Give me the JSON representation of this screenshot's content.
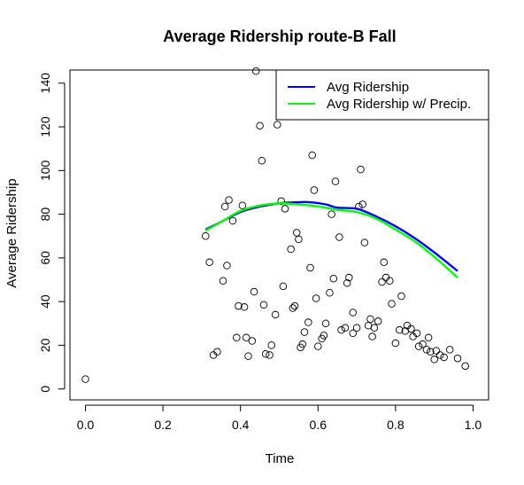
{
  "chart_data": {
    "type": "scatter",
    "title": "Average Ridership route-B Fall",
    "xlabel": "Time",
    "ylabel": "Average Ridership",
    "xlim": [
      -0.04,
      1.04
    ],
    "ylim": [
      -5,
      146
    ],
    "x_ticks": [
      0.0,
      0.2,
      0.4,
      0.6,
      0.8,
      1.0
    ],
    "x_tick_labels": [
      "0.0",
      "0.2",
      "0.4",
      "0.6",
      "0.8",
      "1.0"
    ],
    "y_ticks": [
      0,
      20,
      40,
      60,
      80,
      100,
      120,
      140
    ],
    "y_tick_labels": [
      "0",
      "20",
      "40",
      "60",
      "80",
      "100",
      "120",
      "140"
    ],
    "grid": false,
    "legend_position": "top-right",
    "points": [
      [
        0.0,
        4.5
      ],
      [
        0.31,
        70
      ],
      [
        0.32,
        58
      ],
      [
        0.33,
        15.5
      ],
      [
        0.34,
        17
      ],
      [
        0.355,
        49.5
      ],
      [
        0.36,
        83.5
      ],
      [
        0.365,
        56.5
      ],
      [
        0.37,
        86.5
      ],
      [
        0.38,
        77
      ],
      [
        0.39,
        23.5
      ],
      [
        0.395,
        38
      ],
      [
        0.405,
        84
      ],
      [
        0.41,
        37.5
      ],
      [
        0.415,
        23.5
      ],
      [
        0.42,
        15
      ],
      [
        0.43,
        22
      ],
      [
        0.435,
        44.5
      ],
      [
        0.44,
        145.5
      ],
      [
        0.45,
        120.5
      ],
      [
        0.455,
        104.5
      ],
      [
        0.46,
        38.5
      ],
      [
        0.465,
        16
      ],
      [
        0.475,
        15.5
      ],
      [
        0.48,
        20
      ],
      [
        0.49,
        34
      ],
      [
        0.495,
        121
      ],
      [
        0.505,
        86
      ],
      [
        0.51,
        47
      ],
      [
        0.515,
        82.5
      ],
      [
        0.52,
        126
      ],
      [
        0.53,
        64
      ],
      [
        0.535,
        37
      ],
      [
        0.54,
        38
      ],
      [
        0.545,
        71.5
      ],
      [
        0.55,
        68.5
      ],
      [
        0.555,
        19
      ],
      [
        0.56,
        20.5
      ],
      [
        0.565,
        26
      ],
      [
        0.575,
        30.5
      ],
      [
        0.58,
        55.5
      ],
      [
        0.585,
        107
      ],
      [
        0.59,
        91
      ],
      [
        0.595,
        41.5
      ],
      [
        0.6,
        19.5
      ],
      [
        0.61,
        23
      ],
      [
        0.615,
        24.5
      ],
      [
        0.62,
        30
      ],
      [
        0.63,
        44
      ],
      [
        0.635,
        80
      ],
      [
        0.64,
        50.5
      ],
      [
        0.645,
        95
      ],
      [
        0.65,
        128.5
      ],
      [
        0.655,
        69.5
      ],
      [
        0.66,
        27
      ],
      [
        0.67,
        28
      ],
      [
        0.675,
        48.5
      ],
      [
        0.68,
        51
      ],
      [
        0.69,
        25.5
      ],
      [
        0.69,
        35
      ],
      [
        0.7,
        28
      ],
      [
        0.705,
        83.5
      ],
      [
        0.71,
        100.5
      ],
      [
        0.715,
        84.5
      ],
      [
        0.72,
        67
      ],
      [
        0.73,
        29
      ],
      [
        0.735,
        32
      ],
      [
        0.74,
        24
      ],
      [
        0.745,
        28
      ],
      [
        0.755,
        31
      ],
      [
        0.765,
        49
      ],
      [
        0.77,
        58
      ],
      [
        0.775,
        51
      ],
      [
        0.785,
        49.5
      ],
      [
        0.79,
        39
      ],
      [
        0.8,
        21
      ],
      [
        0.81,
        27
      ],
      [
        0.815,
        42.5
      ],
      [
        0.825,
        26.5
      ],
      [
        0.83,
        29
      ],
      [
        0.84,
        27.5
      ],
      [
        0.845,
        24
      ],
      [
        0.855,
        25.5
      ],
      [
        0.86,
        19.5
      ],
      [
        0.87,
        20.5
      ],
      [
        0.88,
        18
      ],
      [
        0.885,
        23.5
      ],
      [
        0.89,
        17
      ],
      [
        0.9,
        13.5
      ],
      [
        0.905,
        17.5
      ],
      [
        0.915,
        15.5
      ],
      [
        0.925,
        14.5
      ],
      [
        0.94,
        18
      ],
      [
        0.96,
        14
      ],
      [
        0.98,
        10.5
      ]
    ],
    "series": [
      {
        "name": "Avg Ridership",
        "color": "#0000ff",
        "x": [
          0.31,
          0.35,
          0.4,
          0.45,
          0.5,
          0.55,
          0.58,
          0.62,
          0.65,
          0.7,
          0.75,
          0.8,
          0.85,
          0.9,
          0.96
        ],
        "y": [
          73,
          76.5,
          81,
          83.5,
          85,
          85.5,
          85.5,
          84.5,
          83,
          82.5,
          79,
          74.5,
          69,
          62.5,
          54
        ]
      },
      {
        "name": "Avg Ridership w/ Precip.",
        "color": "#00ff00",
        "x": [
          0.31,
          0.35,
          0.4,
          0.45,
          0.5,
          0.55,
          0.58,
          0.62,
          0.65,
          0.7,
          0.75,
          0.8,
          0.85,
          0.9,
          0.96
        ],
        "y": [
          72.5,
          76.5,
          81.5,
          84,
          85,
          84.5,
          84,
          83,
          82,
          81,
          78,
          73,
          67.5,
          60.5,
          51
        ]
      }
    ]
  }
}
